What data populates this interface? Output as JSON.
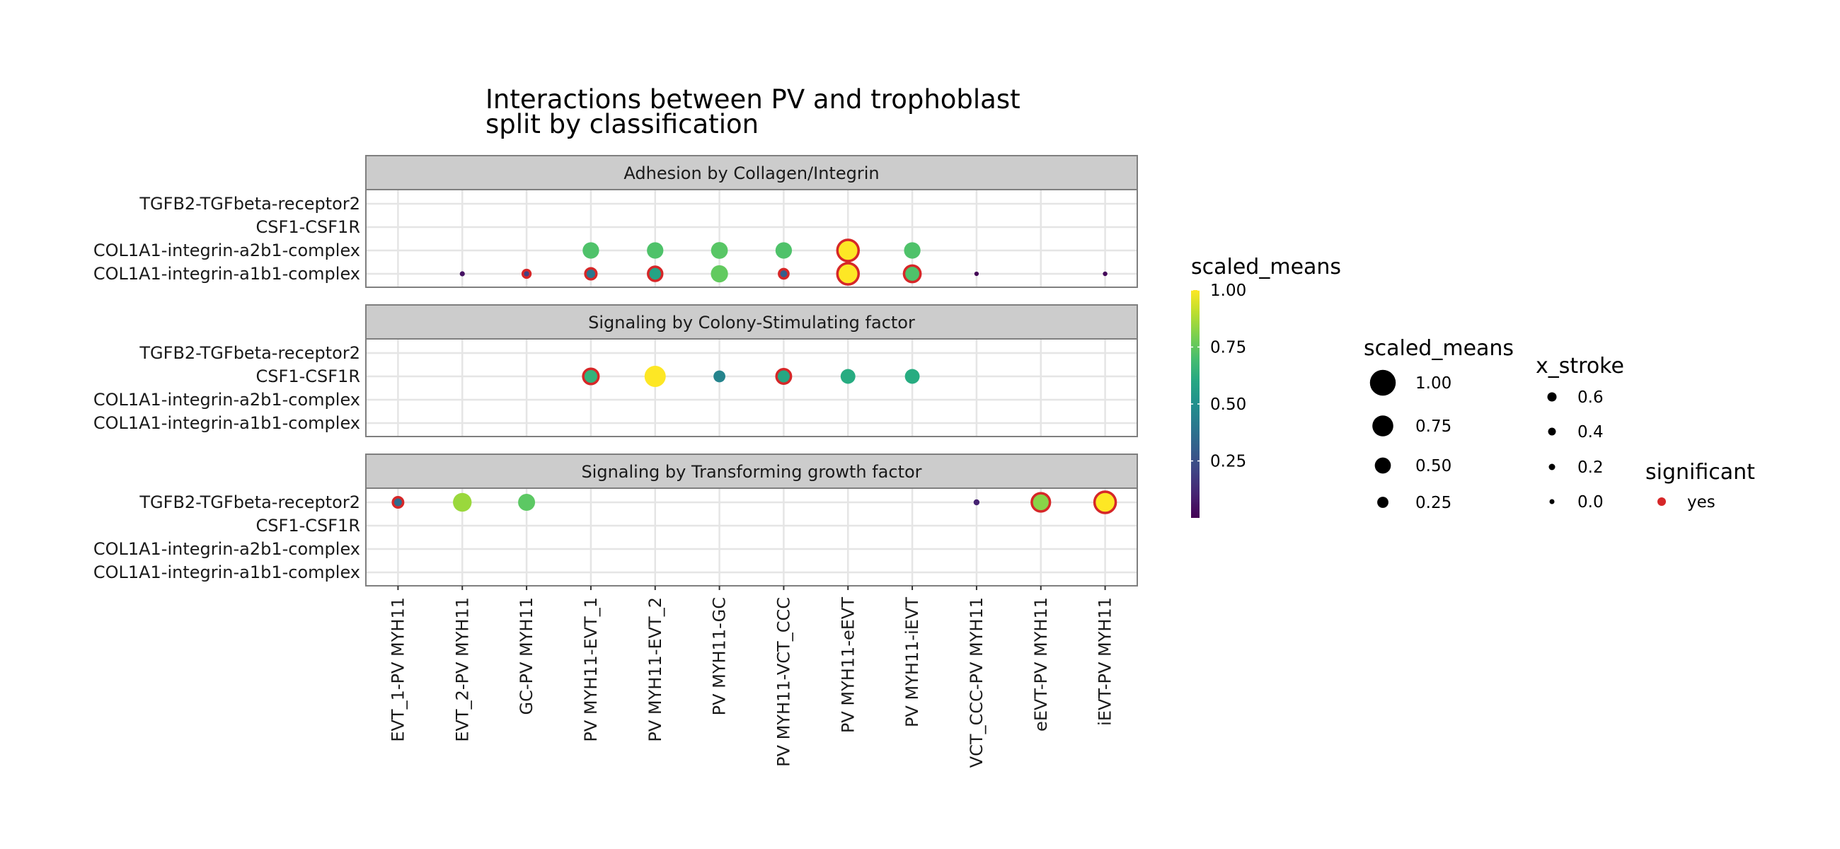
{
  "chart_data": {
    "type": "scatter",
    "title": "Interactions between PV and trophoblast\nsplit by classification",
    "x_categories": [
      "EVT_1-PV MYH11",
      "EVT_2-PV MYH11",
      "GC-PV MYH11",
      "PV MYH11-EVT_1",
      "PV MYH11-EVT_2",
      "PV MYH11-GC",
      "PV MYH11-VCT_CCC",
      "PV MYH11-eEVT",
      "PV MYH11-iEVT",
      "VCT_CCC-PV MYH11",
      "eEVT-PV MYH11",
      "iEVT-PV MYH11"
    ],
    "y_categories": [
      "TGFB2-TGFbeta-receptor2",
      "CSF1-CSF1R",
      "COL1A1-integrin-a2b1-complex",
      "COL1A1-integrin-a1b1-complex"
    ],
    "facets": [
      {
        "label": "Adhesion by Collagen/Integrin",
        "points": [
          {
            "x": "PV MYH11-EVT_1",
            "y": "COL1A1-integrin-a2b1-complex",
            "scaled_means": 0.72,
            "significant": false
          },
          {
            "x": "PV MYH11-EVT_2",
            "y": "COL1A1-integrin-a2b1-complex",
            "scaled_means": 0.72,
            "significant": false
          },
          {
            "x": "PV MYH11-GC",
            "y": "COL1A1-integrin-a2b1-complex",
            "scaled_means": 0.74,
            "significant": false
          },
          {
            "x": "PV MYH11-VCT_CCC",
            "y": "COL1A1-integrin-a2b1-complex",
            "scaled_means": 0.72,
            "significant": false
          },
          {
            "x": "PV MYH11-eEVT",
            "y": "COL1A1-integrin-a2b1-complex",
            "scaled_means": 1.0,
            "significant": true
          },
          {
            "x": "PV MYH11-iEVT",
            "y": "COL1A1-integrin-a2b1-complex",
            "scaled_means": 0.72,
            "significant": false
          },
          {
            "x": "EVT_2-PV MYH11",
            "y": "COL1A1-integrin-a1b1-complex",
            "scaled_means": 0.05,
            "significant": false
          },
          {
            "x": "GC-PV MYH11",
            "y": "COL1A1-integrin-a1b1-complex",
            "scaled_means": 0.2,
            "significant": true
          },
          {
            "x": "PV MYH11-EVT_1",
            "y": "COL1A1-integrin-a1b1-complex",
            "scaled_means": 0.4,
            "significant": true
          },
          {
            "x": "PV MYH11-EVT_2",
            "y": "COL1A1-integrin-a1b1-complex",
            "scaled_means": 0.58,
            "significant": true
          },
          {
            "x": "PV MYH11-GC",
            "y": "COL1A1-integrin-a1b1-complex",
            "scaled_means": 0.76,
            "significant": false
          },
          {
            "x": "PV MYH11-VCT_CCC",
            "y": "COL1A1-integrin-a1b1-complex",
            "scaled_means": 0.3,
            "significant": true
          },
          {
            "x": "PV MYH11-eEVT",
            "y": "COL1A1-integrin-a1b1-complex",
            "scaled_means": 1.0,
            "significant": true
          },
          {
            "x": "PV MYH11-iEVT",
            "y": "COL1A1-integrin-a1b1-complex",
            "scaled_means": 0.72,
            "significant": true
          },
          {
            "x": "VCT_CCC-PV MYH11",
            "y": "COL1A1-integrin-a1b1-complex",
            "scaled_means": 0.01,
            "significant": false
          },
          {
            "x": "iEVT-PV MYH11",
            "y": "COL1A1-integrin-a1b1-complex",
            "scaled_means": 0.02,
            "significant": false
          }
        ]
      },
      {
        "label": "Signaling by Colony-Stimulating factor",
        "points": [
          {
            "x": "PV MYH11-EVT_1",
            "y": "CSF1-CSF1R",
            "scaled_means": 0.65,
            "significant": true
          },
          {
            "x": "PV MYH11-EVT_2",
            "y": "CSF1-CSF1R",
            "scaled_means": 1.0,
            "significant": false
          },
          {
            "x": "PV MYH11-GC",
            "y": "CSF1-CSF1R",
            "scaled_means": 0.45,
            "significant": false
          },
          {
            "x": "PV MYH11-VCT_CCC",
            "y": "CSF1-CSF1R",
            "scaled_means": 0.6,
            "significant": true
          },
          {
            "x": "PV MYH11-eEVT",
            "y": "CSF1-CSF1R",
            "scaled_means": 0.62,
            "significant": false
          },
          {
            "x": "PV MYH11-iEVT",
            "y": "CSF1-CSF1R",
            "scaled_means": 0.62,
            "significant": false
          }
        ]
      },
      {
        "label": "Signaling by Transforming growth factor",
        "points": [
          {
            "x": "EVT_1-PV MYH11",
            "y": "TGFB2-TGFbeta-receptor2",
            "scaled_means": 0.35,
            "significant": true
          },
          {
            "x": "EVT_2-PV MYH11",
            "y": "TGFB2-TGFbeta-receptor2",
            "scaled_means": 0.85,
            "significant": false
          },
          {
            "x": "GC-PV MYH11",
            "y": "TGFB2-TGFbeta-receptor2",
            "scaled_means": 0.75,
            "significant": false
          },
          {
            "x": "VCT_CCC-PV MYH11",
            "y": "TGFB2-TGFbeta-receptor2",
            "scaled_means": 0.1,
            "significant": false
          },
          {
            "x": "eEVT-PV MYH11",
            "y": "TGFB2-TGFbeta-receptor2",
            "scaled_means": 0.82,
            "significant": true
          },
          {
            "x": "iEVT-PV MYH11",
            "y": "TGFB2-TGFbeta-receptor2",
            "scaled_means": 1.0,
            "significant": true
          }
        ]
      }
    ],
    "color_legend": {
      "title": "scaled_means",
      "ticks": [
        "1.00",
        "0.75",
        "0.50",
        "0.25"
      ],
      "tick_values": [
        1.0,
        0.75,
        0.5,
        0.25
      ],
      "range": [
        0.0,
        1.0
      ],
      "colormap": "viridis"
    },
    "size_legend": {
      "title": "scaled_means",
      "labels": [
        "1.00",
        "0.75",
        "0.50",
        "0.25"
      ],
      "values": [
        1.0,
        0.75,
        0.5,
        0.25
      ]
    },
    "stroke_legend": {
      "title": "x_stroke",
      "labels": [
        "0.6",
        "0.4",
        "0.2",
        "0.0"
      ],
      "values": [
        0.6,
        0.4,
        0.2,
        0.0
      ]
    },
    "significant_legend": {
      "title": "significant",
      "labels": [
        "yes"
      ],
      "color": "#d62728"
    },
    "colors": {
      "strip_fill": "#cccccc",
      "panel_border": "#7f7f7f",
      "grid": "#e5e5e5",
      "significant_outline": "#d62728"
    },
    "grid": true
  }
}
